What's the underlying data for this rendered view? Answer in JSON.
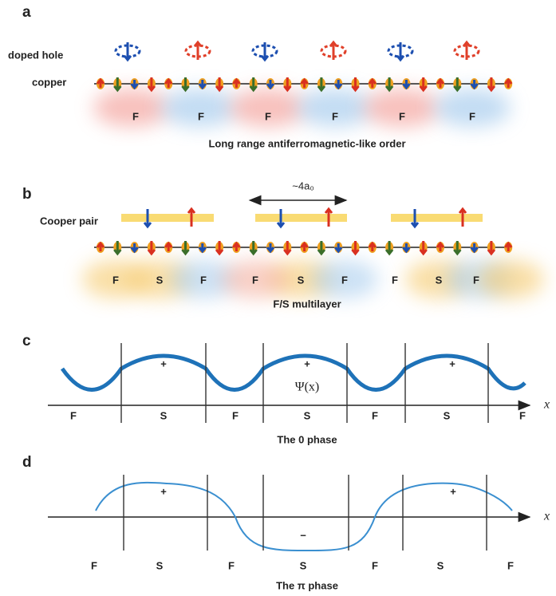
{
  "panel_a": {
    "label": "a",
    "doped_hole_label": "doped hole",
    "copper_label": "copper",
    "regions": [
      "F",
      "F",
      "F",
      "F",
      "F",
      "F"
    ],
    "caption": "Long range antiferromagnetic-like order"
  },
  "panel_b": {
    "label": "b",
    "spacing_label": "~4a₀",
    "cooper_pair_label": "Cooper pair",
    "regions": [
      "F",
      "S",
      "F",
      "F",
      "S",
      "F",
      "F",
      "S",
      "F"
    ],
    "caption": "F/S multilayer"
  },
  "panel_c": {
    "label": "c",
    "signs": [
      "+",
      "+",
      "+"
    ],
    "wavefunction_label": "Ψ(x)",
    "axis_label": "x",
    "regions": [
      "F",
      "S",
      "F",
      "S",
      "F",
      "S",
      "F"
    ],
    "caption": "The 0 phase"
  },
  "panel_d": {
    "label": "d",
    "signs": [
      "+",
      "−",
      "+"
    ],
    "axis_label": "x",
    "regions": [
      "F",
      "S",
      "F",
      "S",
      "F",
      "S",
      "F"
    ],
    "caption": "The π phase"
  }
}
